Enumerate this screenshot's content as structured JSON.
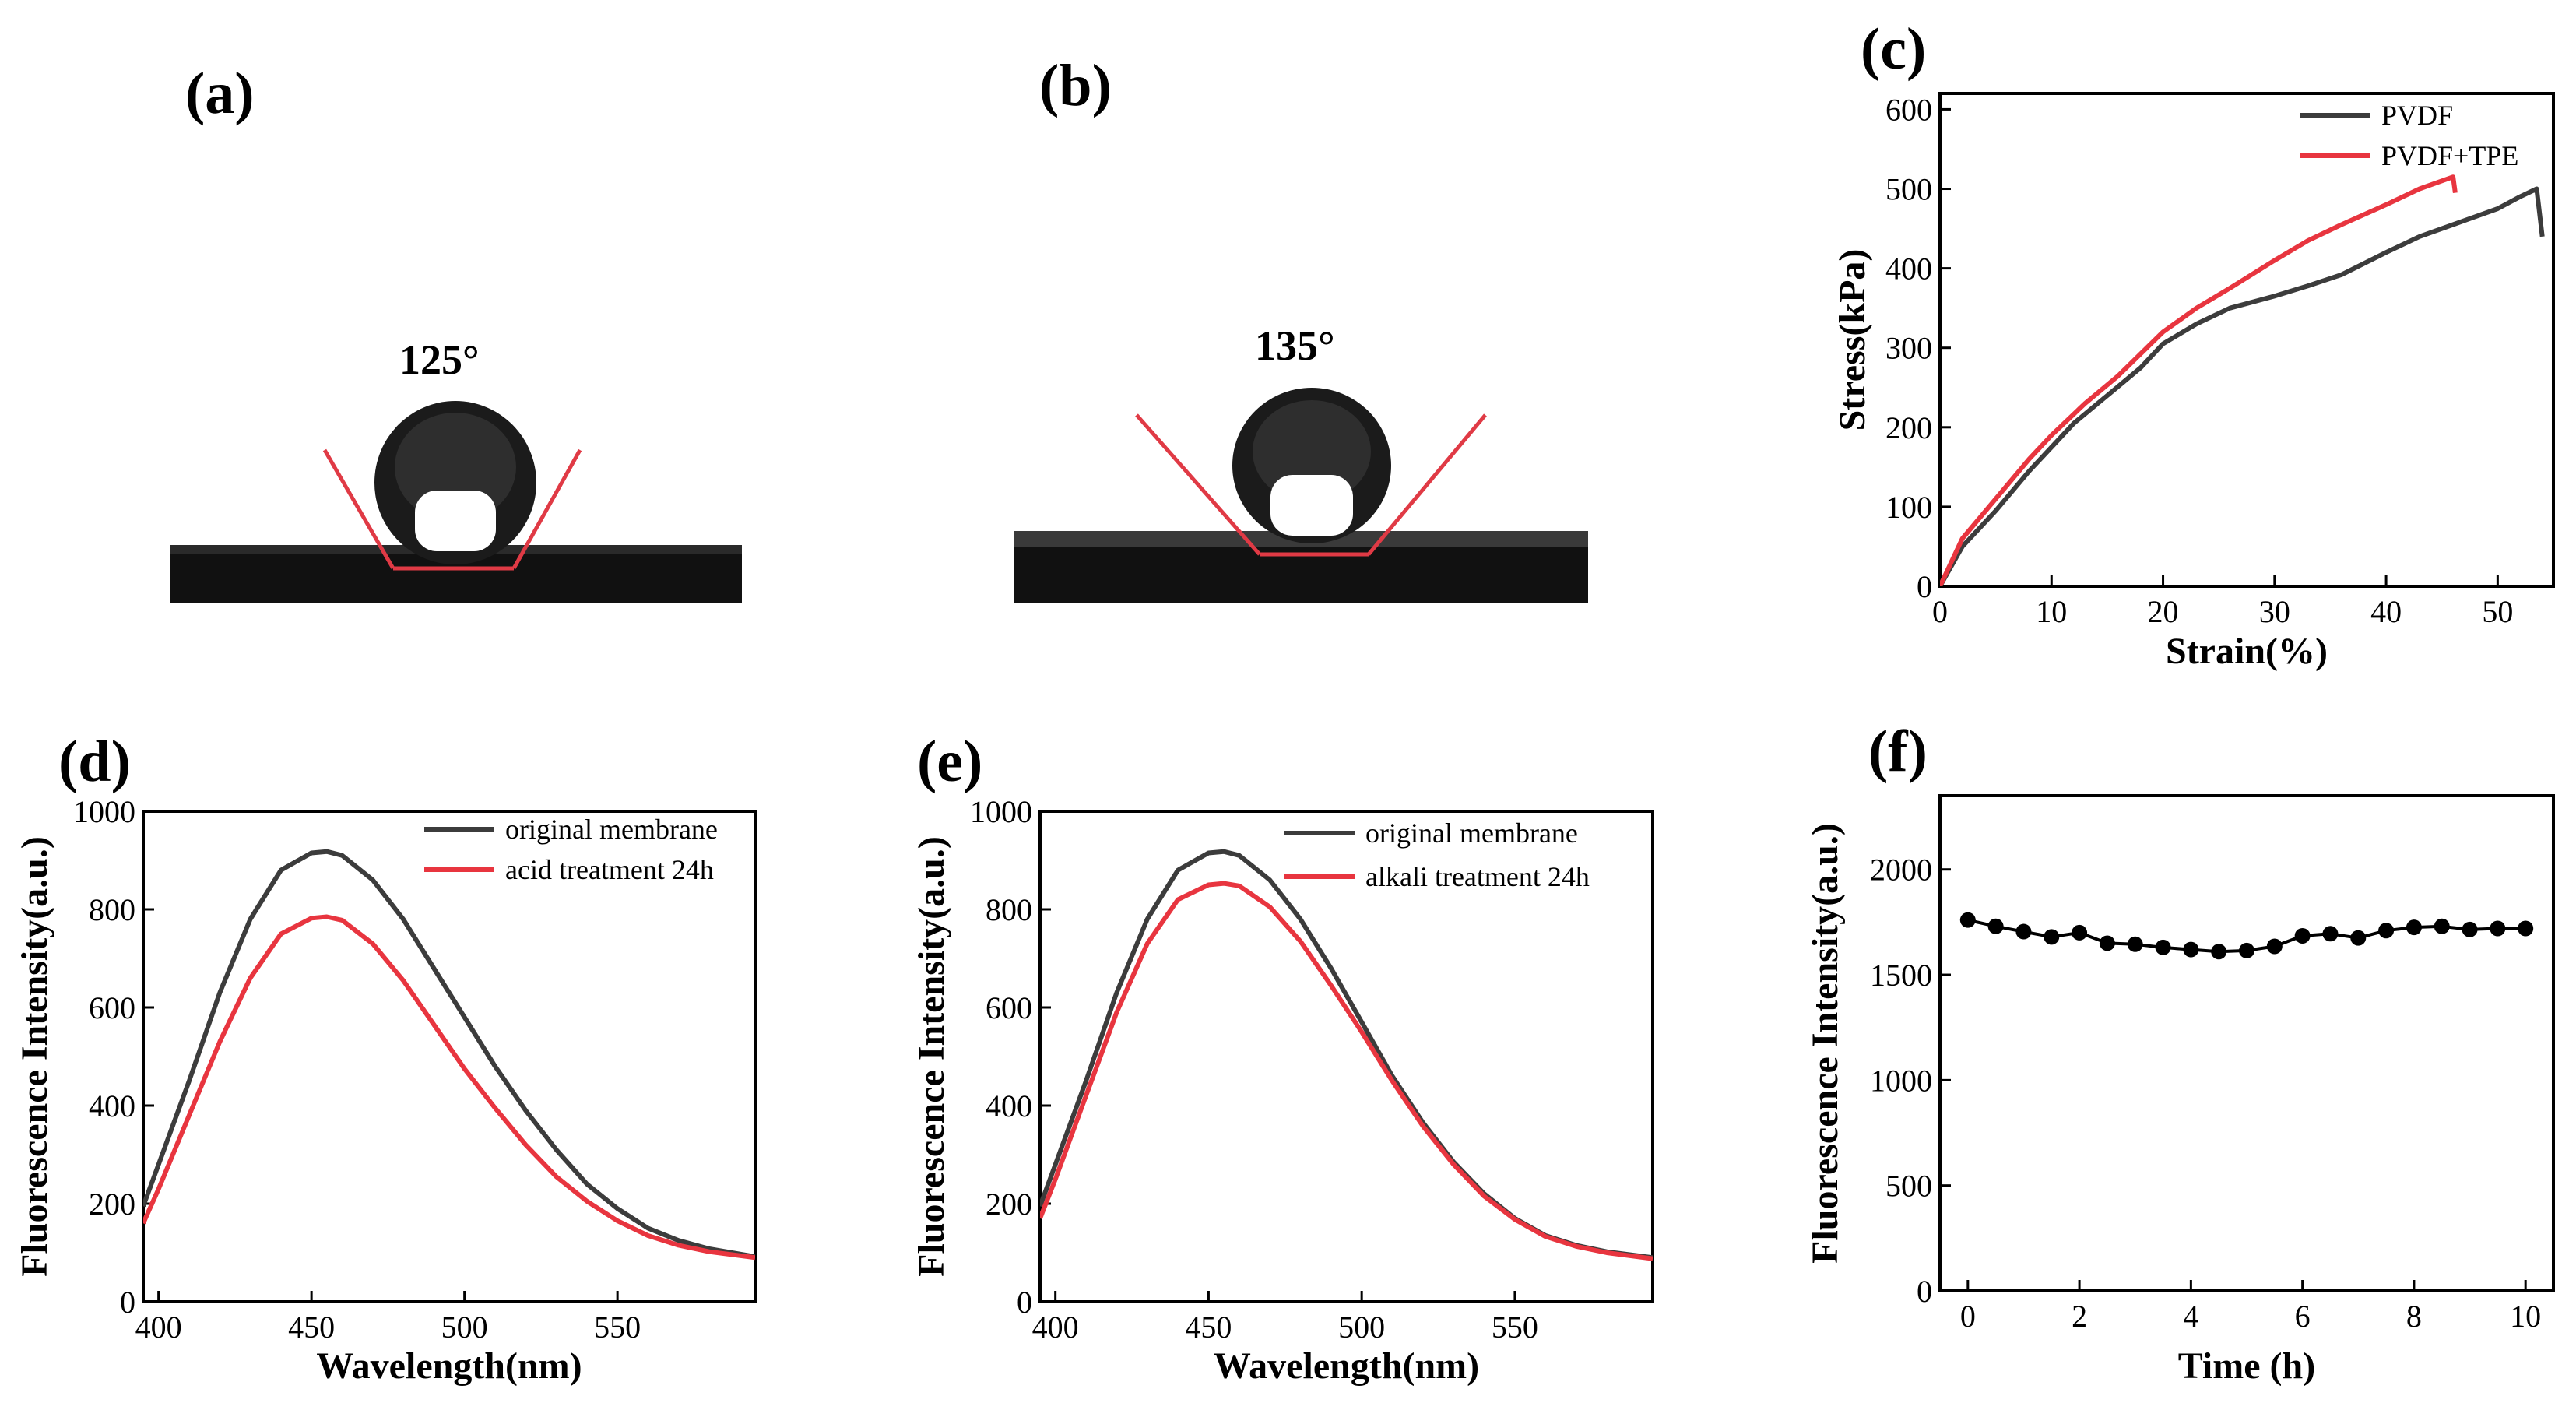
{
  "photos": [
    {
      "label": "(a)",
      "angle": "125°"
    },
    {
      "label": "(b)",
      "angle": "135°"
    }
  ],
  "colors": {
    "black_series": "#3c3c3c",
    "red_series": "#e8353f",
    "tangent_line": "#e03a45"
  },
  "chart_data": [
    {
      "panel": "(c)",
      "type": "line",
      "xlabel": "Strain(%)",
      "ylabel": "Stress(kPa)",
      "xlim": [
        0,
        55
      ],
      "ylim": [
        0,
        620
      ],
      "xticks": [
        0,
        10,
        20,
        30,
        40,
        50
      ],
      "yticks": [
        0,
        100,
        200,
        300,
        400,
        500,
        600
      ],
      "legend_position": "top-right",
      "series": [
        {
          "name": "PVDF",
          "color": "#3c3c3c",
          "x": [
            0,
            2,
            5,
            8,
            10,
            12,
            15,
            18,
            20,
            23,
            26,
            30,
            33,
            36,
            40,
            43,
            46,
            50,
            52,
            53.5,
            54
          ],
          "y": [
            0,
            50,
            95,
            145,
            175,
            205,
            240,
            275,
            305,
            330,
            350,
            365,
            378,
            392,
            420,
            440,
            455,
            475,
            490,
            500,
            440
          ]
        },
        {
          "name": "PVDF+TPE",
          "color": "#e8353f",
          "x": [
            0,
            2,
            5,
            8,
            10,
            13,
            16,
            20,
            23,
            26,
            30,
            33,
            36,
            40,
            43,
            45,
            46,
            46.2
          ],
          "y": [
            0,
            60,
            110,
            160,
            190,
            230,
            265,
            320,
            350,
            375,
            410,
            435,
            455,
            480,
            500,
            510,
            515,
            495
          ]
        }
      ]
    },
    {
      "panel": "(d)",
      "type": "line",
      "xlabel": "Wavelength(nm)",
      "ylabel": "Fluorescence Intensity(a.u.)",
      "xlim": [
        395,
        595
      ],
      "ylim": [
        0,
        1000
      ],
      "xticks": [
        400,
        450,
        500,
        550
      ],
      "yticks": [
        0,
        200,
        400,
        600,
        800,
        1000
      ],
      "legend_position": "top-right",
      "series": [
        {
          "name": "original membrane",
          "color": "#3c3c3c",
          "x": [
            395,
            400,
            410,
            420,
            430,
            440,
            450,
            455,
            460,
            470,
            480,
            490,
            500,
            510,
            520,
            530,
            540,
            550,
            560,
            570,
            580,
            595
          ],
          "y": [
            195,
            280,
            450,
            630,
            780,
            880,
            915,
            918,
            910,
            860,
            780,
            680,
            580,
            480,
            390,
            310,
            240,
            190,
            150,
            125,
            108,
            92
          ]
        },
        {
          "name": "acid treatment 24h",
          "color": "#e8353f",
          "x": [
            395,
            400,
            410,
            420,
            430,
            440,
            450,
            455,
            460,
            470,
            480,
            490,
            500,
            510,
            520,
            530,
            540,
            550,
            560,
            570,
            580,
            595
          ],
          "y": [
            160,
            230,
            380,
            530,
            660,
            750,
            782,
            785,
            778,
            730,
            655,
            565,
            475,
            395,
            320,
            255,
            205,
            165,
            135,
            115,
            102,
            90
          ]
        }
      ]
    },
    {
      "panel": "(e)",
      "type": "line",
      "xlabel": "Wavelength(nm)",
      "ylabel": "Fluorescence Intensity(a.u.)",
      "xlim": [
        395,
        595
      ],
      "ylim": [
        0,
        1000
      ],
      "xticks": [
        400,
        450,
        500,
        550
      ],
      "yticks": [
        0,
        200,
        400,
        600,
        800,
        1000
      ],
      "legend_position": "top-right",
      "series": [
        {
          "name": "original membrane",
          "color": "#3c3c3c",
          "x": [
            395,
            400,
            410,
            420,
            430,
            440,
            450,
            455,
            460,
            470,
            480,
            490,
            500,
            510,
            520,
            530,
            540,
            550,
            560,
            570,
            580,
            595
          ],
          "y": [
            195,
            280,
            450,
            630,
            780,
            880,
            915,
            918,
            910,
            860,
            780,
            680,
            570,
            460,
            365,
            285,
            220,
            170,
            135,
            115,
            102,
            90
          ]
        },
        {
          "name": "alkali treatment 24h",
          "color": "#e8353f",
          "x": [
            395,
            400,
            410,
            420,
            430,
            440,
            450,
            455,
            460,
            470,
            480,
            490,
            500,
            510,
            520,
            530,
            540,
            550,
            560,
            570,
            580,
            595
          ],
          "y": [
            170,
            250,
            420,
            590,
            730,
            820,
            850,
            853,
            848,
            805,
            735,
            645,
            550,
            450,
            358,
            280,
            215,
            168,
            133,
            113,
            100,
            88
          ]
        }
      ]
    },
    {
      "panel": "(f)",
      "type": "line",
      "xlabel": "Time (h)",
      "ylabel": "Fluorescence Intensity(a.u.)",
      "xlim": [
        -0.5,
        10.5
      ],
      "ylim": [
        0,
        2350
      ],
      "xticks": [
        0,
        2,
        4,
        6,
        8,
        10
      ],
      "yticks": [
        0,
        500,
        1000,
        1500,
        2000
      ],
      "series": [
        {
          "name": "",
          "color": "#000000",
          "markers": true,
          "x": [
            0,
            0.5,
            1,
            1.5,
            2,
            2.5,
            3,
            3.5,
            4,
            4.5,
            5,
            5.5,
            6,
            6.5,
            7,
            7.5,
            8,
            8.5,
            9,
            9.5,
            10
          ],
          "y": [
            1760,
            1730,
            1705,
            1680,
            1700,
            1650,
            1645,
            1630,
            1620,
            1610,
            1615,
            1635,
            1685,
            1695,
            1675,
            1710,
            1725,
            1730,
            1715,
            1720,
            1720
          ]
        }
      ]
    }
  ]
}
